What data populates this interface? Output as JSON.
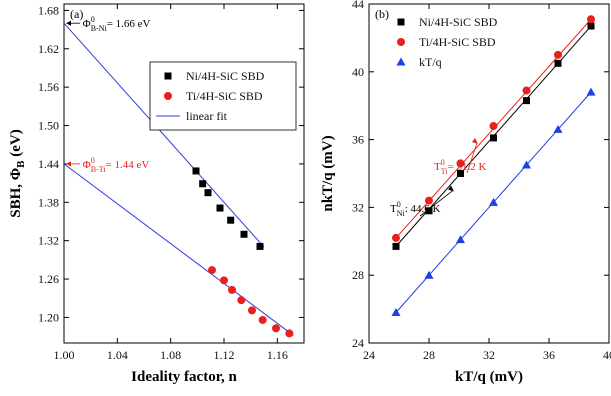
{
  "chart_data": [
    {
      "panel": "(a)",
      "type": "scatter",
      "xlabel": "Ideality factor, n",
      "ylabel_main": "SBH, Φ",
      "ylabel_sub": "B",
      "ylabel_suffix": " (eV)",
      "xlim": [
        1.0,
        1.18
      ],
      "ylim": [
        1.16,
        1.69
      ],
      "xticks": [
        1.0,
        1.04,
        1.08,
        1.12,
        1.16
      ],
      "xtick_labels": [
        "1.00",
        "1.04",
        "1.08",
        "1.12",
        "1.16"
      ],
      "yticks": [
        1.2,
        1.26,
        1.32,
        1.38,
        1.44,
        1.5,
        1.56,
        1.62,
        1.68
      ],
      "ytick_labels": [
        "1.20",
        "1.26",
        "1.32",
        "1.38",
        "1.44",
        "1.50",
        "1.56",
        "1.62",
        "1.68"
      ],
      "legend_position": "top-right",
      "series": [
        {
          "name": "Ni/4H-SiC SBD",
          "marker": "square",
          "color": "#000000",
          "x": [
            1.099,
            1.104,
            1.108,
            1.117,
            1.125,
            1.135,
            1.147
          ],
          "y": [
            1.429,
            1.409,
            1.395,
            1.371,
            1.352,
            1.33,
            1.311
          ]
        },
        {
          "name": "Ti/4H-SiC SBD",
          "marker": "circle",
          "color": "#e8211d",
          "x": [
            1.111,
            1.12,
            1.126,
            1.133,
            1.141,
            1.149,
            1.159,
            1.169
          ],
          "y": [
            1.274,
            1.258,
            1.243,
            1.227,
            1.211,
            1.196,
            1.183,
            1.175
          ]
        },
        {
          "name": "linear fit",
          "type": "line",
          "color": "#2b3fd8",
          "x": [
            1.0,
            1.15
          ],
          "y": [
            1.66,
            1.31
          ]
        },
        {
          "name": "",
          "type": "line",
          "color": "#2b3fd8",
          "x": [
            1.0,
            1.172
          ],
          "y": [
            1.44,
            1.172
          ]
        }
      ],
      "annotations": [
        {
          "symbol": "Φ",
          "sup": "0",
          "sub": "B-Ni",
          "value": "= 1.66 eV",
          "color": "#000000"
        },
        {
          "symbol": "Φ",
          "sup": "0",
          "sub": "B-Ti",
          "value": "= 1.44 eV",
          "color": "#e8211d"
        }
      ]
    },
    {
      "panel": "(b)",
      "type": "scatter",
      "xlabel": "kT/q (mV)",
      "ylabel": "nkT/q (mV)",
      "xlim": [
        24,
        40
      ],
      "ylim": [
        24,
        44
      ],
      "xticks": [
        24,
        28,
        32,
        36,
        40
      ],
      "xtick_labels": [
        "24",
        "28",
        "32",
        "36",
        "40"
      ],
      "yticks": [
        24,
        28,
        32,
        36,
        40,
        44
      ],
      "ytick_labels": [
        "24",
        "28",
        "32",
        "36",
        "40",
        "44"
      ],
      "legend_position": "top-left",
      "series": [
        {
          "name": "Ni/4H-SiC SBD",
          "marker": "square",
          "color": "#000000",
          "x": [
            25.8,
            28.0,
            30.1,
            32.3,
            34.5,
            36.6,
            38.8
          ],
          "y": [
            29.7,
            31.8,
            34.0,
            36.1,
            38.3,
            40.5,
            42.7
          ]
        },
        {
          "name": "Ti/4H-SiC SBD",
          "marker": "circle",
          "color": "#e8211d",
          "x": [
            25.8,
            28.0,
            30.1,
            32.3,
            34.5,
            36.6,
            38.8
          ],
          "y": [
            30.2,
            32.4,
            34.6,
            36.8,
            38.9,
            41.0,
            43.1
          ]
        },
        {
          "name": "kT/q",
          "marker": "triangle",
          "color": "#1f3fe0",
          "x": [
            25.8,
            28.0,
            30.1,
            32.3,
            34.5,
            36.6,
            38.8
          ],
          "y": [
            25.8,
            28.0,
            30.1,
            32.3,
            34.5,
            36.6,
            38.8
          ]
        },
        {
          "name": "",
          "type": "line",
          "color": "#000000",
          "x": [
            25.8,
            38.8
          ],
          "y": [
            29.7,
            42.7
          ]
        },
        {
          "name": "",
          "type": "line",
          "color": "#e8211d",
          "x": [
            25.8,
            38.8
          ],
          "y": [
            30.2,
            43.1
          ]
        },
        {
          "name": "",
          "type": "line",
          "color": "#1f3fe0",
          "x": [
            25.8,
            38.8
          ],
          "y": [
            25.8,
            38.8
          ]
        }
      ],
      "annotations": [
        {
          "symbol": "T",
          "sup": "0",
          "sub": "Ti",
          "value": "= 51.2 K",
          "color": "#e8211d"
        },
        {
          "symbol": "T",
          "sup": "0",
          "sub": "Ni",
          "value": ": 44.6 K",
          "color": "#000000"
        }
      ]
    }
  ]
}
